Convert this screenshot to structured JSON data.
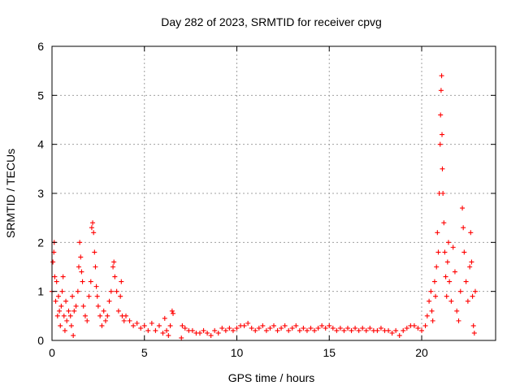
{
  "chart_data": {
    "type": "scatter",
    "title": "Day 282 of 2023, SRMTID for receiver cpvg",
    "xlabel": "GPS time / hours",
    "ylabel": "SRMTID / TECUs",
    "xlim": [
      0,
      24
    ],
    "ylim": [
      0,
      6
    ],
    "xticks": [
      0,
      5,
      10,
      15,
      20
    ],
    "yticks": [
      0,
      1,
      2,
      3,
      4,
      5,
      6
    ],
    "grid": true,
    "marker": "+",
    "color": "#ff0000",
    "series": [
      {
        "name": "SRMTID",
        "points": [
          [
            0.0,
            1.0
          ],
          [
            0.05,
            1.6
          ],
          [
            0.1,
            1.8
          ],
          [
            0.12,
            2.0
          ],
          [
            0.15,
            1.3
          ],
          [
            0.2,
            0.8
          ],
          [
            0.25,
            1.2
          ],
          [
            0.3,
            0.5
          ],
          [
            0.35,
            0.9
          ],
          [
            0.4,
            0.6
          ],
          [
            0.45,
            0.3
          ],
          [
            0.5,
            0.7
          ],
          [
            0.55,
            1.0
          ],
          [
            0.6,
            1.3
          ],
          [
            0.65,
            0.5
          ],
          [
            0.7,
            0.2
          ],
          [
            0.75,
            0.8
          ],
          [
            0.8,
            0.4
          ],
          [
            0.9,
            0.6
          ],
          [
            1.0,
            0.5
          ],
          [
            1.05,
            0.3
          ],
          [
            1.1,
            0.9
          ],
          [
            1.15,
            0.1
          ],
          [
            1.2,
            0.6
          ],
          [
            1.3,
            0.7
          ],
          [
            1.4,
            1.0
          ],
          [
            1.45,
            1.5
          ],
          [
            1.5,
            2.0
          ],
          [
            1.55,
            1.7
          ],
          [
            1.6,
            1.4
          ],
          [
            1.65,
            1.2
          ],
          [
            1.7,
            0.7
          ],
          [
            1.8,
            0.5
          ],
          [
            1.9,
            0.4
          ],
          [
            2.0,
            0.9
          ],
          [
            2.1,
            1.2
          ],
          [
            2.15,
            2.3
          ],
          [
            2.2,
            2.4
          ],
          [
            2.25,
            2.2
          ],
          [
            2.3,
            1.8
          ],
          [
            2.35,
            1.5
          ],
          [
            2.4,
            1.1
          ],
          [
            2.45,
            0.9
          ],
          [
            2.5,
            0.7
          ],
          [
            2.6,
            0.5
          ],
          [
            2.7,
            0.3
          ],
          [
            2.8,
            0.6
          ],
          [
            2.9,
            0.4
          ],
          [
            3.0,
            0.5
          ],
          [
            3.1,
            0.8
          ],
          [
            3.2,
            1.0
          ],
          [
            3.3,
            1.5
          ],
          [
            3.35,
            1.6
          ],
          [
            3.4,
            1.3
          ],
          [
            3.5,
            1.0
          ],
          [
            3.6,
            0.6
          ],
          [
            3.7,
            0.9
          ],
          [
            3.75,
            1.2
          ],
          [
            3.8,
            0.5
          ],
          [
            3.9,
            0.4
          ],
          [
            4.0,
            0.5
          ],
          [
            4.2,
            0.4
          ],
          [
            4.4,
            0.3
          ],
          [
            4.6,
            0.35
          ],
          [
            4.8,
            0.25
          ],
          [
            5.0,
            0.3
          ],
          [
            5.2,
            0.2
          ],
          [
            5.4,
            0.35
          ],
          [
            5.6,
            0.2
          ],
          [
            5.8,
            0.3
          ],
          [
            6.0,
            0.15
          ],
          [
            6.1,
            0.45
          ],
          [
            6.2,
            0.2
          ],
          [
            6.3,
            0.1
          ],
          [
            6.4,
            0.3
          ],
          [
            6.5,
            0.6
          ],
          [
            6.55,
            0.55
          ],
          [
            7.0,
            0.05
          ],
          [
            7.05,
            0.3
          ],
          [
            7.2,
            0.25
          ],
          [
            7.4,
            0.2
          ],
          [
            7.6,
            0.2
          ],
          [
            7.8,
            0.15
          ],
          [
            8.0,
            0.15
          ],
          [
            8.2,
            0.2
          ],
          [
            8.4,
            0.15
          ],
          [
            8.6,
            0.1
          ],
          [
            8.8,
            0.2
          ],
          [
            9.0,
            0.15
          ],
          [
            9.2,
            0.25
          ],
          [
            9.4,
            0.2
          ],
          [
            9.6,
            0.25
          ],
          [
            9.8,
            0.2
          ],
          [
            10.0,
            0.25
          ],
          [
            10.2,
            0.3
          ],
          [
            10.4,
            0.3
          ],
          [
            10.6,
            0.35
          ],
          [
            10.8,
            0.25
          ],
          [
            11.0,
            0.2
          ],
          [
            11.2,
            0.25
          ],
          [
            11.4,
            0.3
          ],
          [
            11.6,
            0.2
          ],
          [
            11.8,
            0.25
          ],
          [
            12.0,
            0.3
          ],
          [
            12.2,
            0.2
          ],
          [
            12.4,
            0.25
          ],
          [
            12.6,
            0.3
          ],
          [
            12.8,
            0.2
          ],
          [
            13.0,
            0.25
          ],
          [
            13.2,
            0.3
          ],
          [
            13.4,
            0.2
          ],
          [
            13.6,
            0.25
          ],
          [
            13.8,
            0.2
          ],
          [
            14.0,
            0.25
          ],
          [
            14.2,
            0.2
          ],
          [
            14.4,
            0.25
          ],
          [
            14.6,
            0.3
          ],
          [
            14.8,
            0.25
          ],
          [
            15.0,
            0.3
          ],
          [
            15.2,
            0.25
          ],
          [
            15.4,
            0.2
          ],
          [
            15.6,
            0.25
          ],
          [
            15.8,
            0.2
          ],
          [
            16.0,
            0.25
          ],
          [
            16.2,
            0.2
          ],
          [
            16.4,
            0.25
          ],
          [
            16.6,
            0.2
          ],
          [
            16.8,
            0.25
          ],
          [
            17.0,
            0.2
          ],
          [
            17.2,
            0.25
          ],
          [
            17.4,
            0.2
          ],
          [
            17.6,
            0.2
          ],
          [
            17.8,
            0.25
          ],
          [
            18.0,
            0.2
          ],
          [
            18.2,
            0.2
          ],
          [
            18.4,
            0.15
          ],
          [
            18.6,
            0.2
          ],
          [
            18.8,
            0.1
          ],
          [
            19.0,
            0.2
          ],
          [
            19.2,
            0.25
          ],
          [
            19.4,
            0.3
          ],
          [
            19.6,
            0.3
          ],
          [
            19.8,
            0.25
          ],
          [
            20.0,
            0.2
          ],
          [
            20.2,
            0.3
          ],
          [
            20.3,
            0.5
          ],
          [
            20.4,
            0.8
          ],
          [
            20.5,
            1.0
          ],
          [
            20.55,
            0.6
          ],
          [
            20.6,
            0.4
          ],
          [
            20.7,
            1.2
          ],
          [
            20.75,
            0.9
          ],
          [
            20.8,
            1.5
          ],
          [
            20.85,
            2.2
          ],
          [
            20.9,
            1.8
          ],
          [
            20.95,
            3.0
          ],
          [
            21.0,
            4.0
          ],
          [
            21.02,
            4.6
          ],
          [
            21.05,
            5.1
          ],
          [
            21.08,
            5.4
          ],
          [
            21.1,
            4.2
          ],
          [
            21.12,
            3.5
          ],
          [
            21.15,
            3.0
          ],
          [
            21.2,
            2.4
          ],
          [
            21.25,
            1.8
          ],
          [
            21.3,
            1.3
          ],
          [
            21.35,
            0.9
          ],
          [
            21.4,
            1.6
          ],
          [
            21.45,
            2.0
          ],
          [
            21.5,
            1.2
          ],
          [
            21.6,
            0.8
          ],
          [
            21.7,
            1.9
          ],
          [
            21.8,
            1.4
          ],
          [
            21.9,
            0.6
          ],
          [
            22.0,
            0.4
          ],
          [
            22.1,
            1.0
          ],
          [
            22.2,
            2.7
          ],
          [
            22.25,
            2.3
          ],
          [
            22.3,
            1.8
          ],
          [
            22.4,
            1.2
          ],
          [
            22.5,
            0.8
          ],
          [
            22.6,
            1.5
          ],
          [
            22.65,
            2.2
          ],
          [
            22.7,
            1.6
          ],
          [
            22.75,
            0.9
          ],
          [
            22.8,
            0.3
          ],
          [
            22.85,
            0.15
          ],
          [
            22.9,
            1.0
          ]
        ]
      }
    ]
  }
}
